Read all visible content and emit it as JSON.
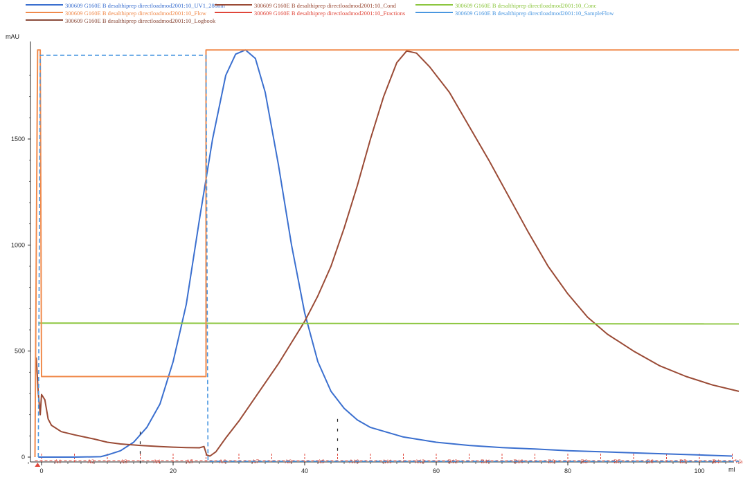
{
  "legend": [
    {
      "label": "300609 G160E B desalthiprep directloadmod2001:10_UV1_280nm",
      "color": "#3a6fcf"
    },
    {
      "label": "300609 G160E B desalthiprep directloadmod2001:10_Cond",
      "color": "#9a4a35"
    },
    {
      "label": "300609 G160E B desalthiprep directloadmod2001:10_Conc",
      "color": "#8cc63f"
    },
    {
      "label": "300609 G160E B desalthiprep directloadmod2001:10_Flow",
      "color": "#f08a4b"
    },
    {
      "label": "300609 G160E B desalthiprep directloadmod2001:10_Fractions",
      "color": "#e0463a"
    },
    {
      "label": "300609 G160E B desalthiprep directloadmod2001:10_SampleFlow",
      "color": "#4a97e0"
    },
    {
      "label": "300609 G160E B desalthiprep directloadmod2001:10_Logbook",
      "color": "#8a4a3a"
    }
  ],
  "chart_data": {
    "type": "line",
    "xlabel": "ml",
    "ylabel": "mAU",
    "xlim": [
      -2,
      107
    ],
    "ylim": [
      -20,
      1930
    ],
    "x_ticks": [
      0,
      20,
      40,
      60,
      80,
      100
    ],
    "y_ticks": [
      0,
      500,
      1000,
      1500
    ],
    "series": [
      {
        "name": "UV1_280nm",
        "color": "#3a6fcf",
        "style": "solid",
        "points": [
          [
            -0.5,
            0
          ],
          [
            5,
            0
          ],
          [
            9,
            2
          ],
          [
            10,
            10
          ],
          [
            12,
            30
          ],
          [
            14,
            70
          ],
          [
            16,
            140
          ],
          [
            18,
            250
          ],
          [
            20,
            450
          ],
          [
            22,
            720
          ],
          [
            24,
            1120
          ],
          [
            26,
            1500
          ],
          [
            28,
            1800
          ],
          [
            29.5,
            1900
          ],
          [
            31,
            1920
          ],
          [
            32.5,
            1880
          ],
          [
            34,
            1720
          ],
          [
            36,
            1380
          ],
          [
            38,
            1000
          ],
          [
            40,
            680
          ],
          [
            42,
            450
          ],
          [
            44,
            310
          ],
          [
            46,
            230
          ],
          [
            48,
            175
          ],
          [
            50,
            140
          ],
          [
            55,
            95
          ],
          [
            60,
            70
          ],
          [
            65,
            55
          ],
          [
            70,
            45
          ],
          [
            75,
            38
          ],
          [
            80,
            30
          ],
          [
            85,
            25
          ],
          [
            90,
            20
          ],
          [
            95,
            15
          ],
          [
            100,
            10
          ],
          [
            105,
            5
          ]
        ]
      },
      {
        "name": "Cond",
        "color": "#9a4a35",
        "style": "solid",
        "points": [
          [
            -0.8,
            470
          ],
          [
            -0.5,
            300
          ],
          [
            -0.2,
            200
          ],
          [
            0,
            295
          ],
          [
            0.5,
            270
          ],
          [
            1,
            180
          ],
          [
            1.5,
            150
          ],
          [
            3,
            120
          ],
          [
            5,
            105
          ],
          [
            8,
            85
          ],
          [
            10,
            70
          ],
          [
            12,
            62
          ],
          [
            15,
            55
          ],
          [
            18,
            50
          ],
          [
            20,
            47
          ],
          [
            22,
            45
          ],
          [
            24,
            44
          ],
          [
            24.7,
            50
          ],
          [
            25.1,
            10
          ],
          [
            25.6,
            5
          ],
          [
            26.5,
            25
          ],
          [
            28,
            90
          ],
          [
            30,
            170
          ],
          [
            32,
            260
          ],
          [
            34,
            350
          ],
          [
            36,
            440
          ],
          [
            38,
            540
          ],
          [
            40,
            640
          ],
          [
            42,
            760
          ],
          [
            44,
            900
          ],
          [
            46,
            1080
          ],
          [
            48,
            1280
          ],
          [
            50,
            1500
          ],
          [
            52,
            1700
          ],
          [
            54,
            1860
          ],
          [
            55.5,
            1915
          ],
          [
            57,
            1905
          ],
          [
            59,
            1840
          ],
          [
            62,
            1720
          ],
          [
            65,
            1560
          ],
          [
            68,
            1400
          ],
          [
            71,
            1230
          ],
          [
            74,
            1060
          ],
          [
            77,
            900
          ],
          [
            80,
            770
          ],
          [
            83,
            660
          ],
          [
            86,
            580
          ],
          [
            90,
            500
          ],
          [
            94,
            430
          ],
          [
            98,
            380
          ],
          [
            102,
            340
          ],
          [
            106,
            310
          ]
        ]
      },
      {
        "name": "Conc",
        "color": "#8cc63f",
        "style": "solid",
        "points": [
          [
            -0.5,
            632
          ],
          [
            106,
            628
          ]
        ]
      },
      {
        "name": "Flow",
        "color": "#f08a4b",
        "style": "solid",
        "points": [
          [
            -1,
            0
          ],
          [
            -0.6,
            1920
          ],
          [
            -0.2,
            1920
          ],
          [
            0,
            380
          ],
          [
            25,
            380
          ],
          [
            25,
            1920
          ],
          [
            106,
            1920
          ]
        ]
      },
      {
        "name": "SampleFlow",
        "color": "#4a97e0",
        "style": "dashed",
        "points": [
          [
            -0.5,
            0
          ],
          [
            -0.2,
            1895
          ],
          [
            25,
            1895
          ],
          [
            25.3,
            -20
          ],
          [
            106,
            -20
          ]
        ]
      }
    ],
    "fractions": {
      "color": "#e0463a",
      "boundaries": [
        0,
        5,
        10,
        15,
        20,
        25,
        30,
        35,
        40,
        45,
        50,
        55,
        60,
        65,
        70,
        75,
        80,
        85,
        90,
        95,
        100,
        105
      ],
      "labels": [
        "A1",
        "A2",
        "A3",
        "A4",
        "A5",
        "A6",
        "A7",
        "A8",
        "A9",
        "A10",
        "A11",
        "A12",
        "B12",
        "B11",
        "B10",
        "B9",
        "B8",
        "B7",
        "B6",
        "B5",
        "B4",
        "Waste"
      ]
    },
    "logbook_marks": [
      {
        "x": 15,
        "y": 120
      },
      {
        "x": 45,
        "y": 180
      }
    ]
  }
}
